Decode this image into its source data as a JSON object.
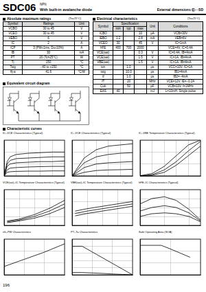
{
  "header": {
    "part_number": "SDC06",
    "polarity": "NPN",
    "description": "With built-in avalanche diode",
    "external_dimensions": "External dimensions Ⓔ···SD"
  },
  "absolute_maximum_ratings": {
    "title": "Absolute maximum ratings",
    "condition": "(Ta=25°C)",
    "columns": [
      "Symbol",
      "Ratings",
      "Unit"
    ],
    "rows": [
      [
        "VCBO",
        "30 to 45",
        "V"
      ],
      [
        "VCEO",
        "30 to 45",
        "V"
      ],
      [
        "VEBO",
        "6",
        "V"
      ],
      [
        "IC",
        "2",
        "A"
      ],
      [
        "ICP",
        "3 (PW≤1ms, Du≤10%)",
        "A"
      ],
      [
        "IB",
        "30",
        "mA"
      ],
      [
        "PT",
        "20 (Tc=25°C)",
        "W"
      ],
      [
        "Tj",
        "150",
        "°C"
      ],
      [
        "Tstg",
        "−40 to +150",
        "°C"
      ],
      [
        "θj-a",
        "41.6",
        "°C/W"
      ]
    ]
  },
  "electrical_characteristics": {
    "title": "Electrical characteristics",
    "condition": "(Ta=25°C)",
    "columns": [
      "Symbol",
      "Specification",
      "Unit",
      "Conditions"
    ],
    "subcolumns": [
      "min",
      "typ",
      "max"
    ],
    "rows": [
      [
        "ICBO",
        null,
        null,
        "10",
        "μA",
        "VCB=30V"
      ],
      [
        "IEBO",
        "1.2",
        null,
        "2.8",
        "mA",
        "VEB=6V"
      ],
      [
        "VCEO",
        "30",
        null,
        "45",
        "V",
        "IC=1mA"
      ],
      [
        "hFE",
        "400",
        "700",
        "2000",
        null,
        "VCE=4V, IC=0.4A"
      ],
      [
        "VCE(sat)",
        null,
        null,
        "0.3",
        "V",
        "IC=0.4A, IB=4mA"
      ],
      [
        "VCE(sat)",
        null,
        null,
        "1.5",
        "V",
        "IC=1A, IB=4mA"
      ],
      [
        "VBE(sat)",
        null,
        null,
        "1.5",
        "V",
        "IC=1A, IB=4mA"
      ],
      [
        "ton",
        null,
        "1.0",
        null,
        "μs",
        "VCC=10V, IC=1A"
      ],
      [
        "tstg",
        null,
        "10.0",
        null,
        "μs",
        "IB1=4mA"
      ],
      [
        "tf",
        null,
        "1.0",
        null,
        "μs",
        "IB2=−4mA"
      ],
      [
        "fT",
        null,
        "20",
        null,
        "MHz",
        "VCE=12V, IE=−0.2A"
      ],
      [
        "Cob",
        null,
        "50",
        null,
        "pF",
        "VCB=10V, f=1MHz"
      ],
      [
        "EAS",
        "40",
        null,
        null,
        "mJ",
        "L=10mH, Single pulse"
      ]
    ]
  },
  "equivalent_circuit": {
    "title": "Equivalent circuit diagram"
  },
  "characteristic_curves": {
    "title": "Characteristic curves"
  },
  "chart_data": [
    {
      "type": "line",
      "title": "IC–VCE Characteristics (Typical)",
      "color": "#000000",
      "grid": true,
      "tick_labels": false,
      "x": [
        0,
        0.5,
        1,
        2,
        4,
        6,
        8,
        10
      ],
      "xlim": [
        0,
        10
      ],
      "xticks": [
        0,
        2,
        4,
        6,
        8,
        10
      ],
      "ylim": [
        0,
        3
      ],
      "yticks": [
        0,
        1,
        2,
        3
      ],
      "series": [
        {
          "values": [
            0,
            1.2,
            1.6,
            1.8,
            1.9,
            1.95,
            2.0,
            2.0
          ]
        },
        {
          "values": [
            0,
            1.0,
            1.3,
            1.45,
            1.5,
            1.55,
            1.6,
            1.6
          ]
        },
        {
          "values": [
            0,
            0.8,
            1.0,
            1.1,
            1.15,
            1.2,
            1.2,
            1.25
          ]
        },
        {
          "values": [
            0,
            0.5,
            0.65,
            0.7,
            0.75,
            0.78,
            0.8,
            0.8
          ]
        },
        {
          "values": [
            0,
            0.3,
            0.35,
            0.38,
            0.4,
            0.4,
            0.42,
            0.42
          ]
        }
      ]
    },
    {
      "type": "line",
      "title": "IC–VCE Characteristics (Typical)",
      "color": "#000000",
      "grid": true,
      "tick_labels": false,
      "x": [
        0,
        0.2,
        0.4,
        0.6,
        0.8,
        1.0
      ],
      "xlim": [
        0,
        1
      ],
      "xticks": [
        0,
        0.2,
        0.4,
        0.6,
        0.8,
        1
      ],
      "ylim": [
        0,
        3
      ],
      "yticks": [
        0,
        1,
        2,
        3
      ],
      "series": [
        {
          "values": [
            0,
            1.5,
            2.2,
            2.5,
            2.6,
            2.7
          ]
        },
        {
          "values": [
            0,
            1.1,
            1.6,
            1.8,
            1.9,
            1.95
          ]
        },
        {
          "values": [
            0,
            0.7,
            1.0,
            1.1,
            1.15,
            1.2
          ]
        },
        {
          "values": [
            0,
            0.3,
            0.45,
            0.5,
            0.52,
            0.55
          ]
        }
      ]
    },
    {
      "type": "line",
      "title": "IC–VBE Temperature Characteristics (Typical)",
      "color": "#000000",
      "grid": true,
      "tick_labels": false,
      "x": [
        0.8,
        1.0,
        1.2,
        1.4,
        1.6,
        1.8
      ],
      "xlim": [
        0.8,
        1.8
      ],
      "xticks": [
        0.8,
        1,
        1.2,
        1.4,
        1.6,
        1.8
      ],
      "ylim": [
        0,
        3
      ],
      "yticks": [
        0,
        1,
        2,
        3
      ],
      "series": [
        {
          "values": [
            0.02,
            0.2,
            0.8,
            1.7,
            2.6,
            3.0
          ]
        },
        {
          "values": [
            0,
            0.1,
            0.5,
            1.2,
            2.1,
            2.9
          ]
        },
        {
          "values": [
            0,
            0.05,
            0.3,
            0.9,
            1.7,
            2.5
          ]
        }
      ]
    },
    {
      "type": "line",
      "title": "VCE(sat)–IC Temperature Characteristics (Typical)",
      "color": "#000000",
      "grid": true,
      "tick_labels": false,
      "x": [
        0.1,
        0.5,
        1,
        1.5,
        2
      ],
      "xlim": [
        0,
        2
      ],
      "xticks": [
        0,
        0.5,
        1,
        1.5,
        2
      ],
      "ylim": [
        0,
        2
      ],
      "yticks": [
        0,
        0.5,
        1,
        1.5,
        2
      ],
      "series": [
        {
          "values": [
            0.2,
            0.3,
            0.5,
            0.8,
            1.2
          ]
        },
        {
          "values": [
            0.25,
            0.35,
            0.6,
            0.95,
            1.4
          ]
        },
        {
          "values": [
            0.15,
            0.25,
            0.4,
            0.65,
            1.0
          ]
        }
      ]
    },
    {
      "type": "line",
      "title": "VBE(sat)–IC Temperature Characteristics (Typical)",
      "color": "#000000",
      "grid": true,
      "tick_labels": false,
      "x": [
        0.1,
        0.5,
        1,
        1.5,
        2
      ],
      "xlim": [
        0,
        2
      ],
      "xticks": [
        0,
        0.5,
        1,
        1.5,
        2
      ],
      "ylim": [
        0,
        3
      ],
      "yticks": [
        0,
        1,
        2,
        3
      ],
      "series": [
        {
          "values": [
            1.0,
            1.2,
            1.4,
            1.6,
            1.8
          ]
        },
        {
          "values": [
            0.8,
            1.0,
            1.2,
            1.4,
            1.6
          ]
        },
        {
          "values": [
            1.2,
            1.4,
            1.6,
            1.8,
            2.0
          ]
        }
      ]
    },
    {
      "type": "line",
      "title": "hFE–IC Characteristics (Typical)",
      "color": "#000000",
      "grid": true,
      "tick_labels": false,
      "log": "x",
      "x": [
        0.01,
        0.03,
        0.1,
        0.3,
        1,
        3
      ],
      "xlim": [
        0.01,
        3
      ],
      "xticks": [
        0.01,
        0.1,
        1
      ],
      "ylim": [
        0,
        2000
      ],
      "yticks": [
        0,
        500,
        1000,
        1500,
        2000
      ],
      "series": [
        {
          "values": [
            1200,
            1500,
            1600,
            1400,
            900,
            300
          ]
        },
        {
          "values": [
            800,
            1000,
            1100,
            1000,
            700,
            250
          ]
        },
        {
          "values": [
            500,
            650,
            700,
            650,
            500,
            200
          ]
        }
      ]
    },
    {
      "type": "line",
      "title": "rth–PW Characteristics",
      "color": "#000000",
      "grid": true,
      "tick_labels": false,
      "log": true,
      "x": [
        1,
        10,
        100,
        1000
      ],
      "xlim": [
        1,
        1000
      ],
      "xticks": [
        1,
        10,
        100,
        1000
      ],
      "ylim": [
        0.1,
        100
      ],
      "yticks": [
        0.1,
        1,
        10,
        100
      ],
      "series": [
        {
          "values": [
            0.5,
            2,
            8,
            40
          ]
        }
      ]
    },
    {
      "type": "line",
      "title": "PT–Ta Characteristics",
      "color": "#000000",
      "grid": true,
      "tick_labels": false,
      "x": [
        0,
        25,
        50,
        75,
        100,
        125,
        150
      ],
      "xlim": [
        0,
        150
      ],
      "xticks": [
        0,
        50,
        100,
        150
      ],
      "ylim": [
        0,
        25
      ],
      "yticks": [
        0,
        5,
        10,
        15,
        20,
        25
      ],
      "series": [
        {
          "values": [
            20,
            20,
            16,
            12,
            8,
            4,
            0
          ]
        },
        {
          "values": [
            1.6,
            1.6,
            1.3,
            1.0,
            0.6,
            0.3,
            0
          ]
        }
      ]
    },
    {
      "type": "line",
      "title": "Safe Operating Area (SOA)",
      "color": "#000000",
      "grid": true,
      "tick_labels": false,
      "log": true,
      "x": [
        1,
        5,
        10,
        45
      ],
      "xlim": [
        1,
        100
      ],
      "xticks": [
        1,
        10,
        100
      ],
      "ylim": [
        0.01,
        10
      ],
      "yticks": [
        0.01,
        0.1,
        1,
        10
      ],
      "series": [
        {
          "values": [
            3,
            3,
            1.5,
            0.3
          ]
        }
      ]
    }
  ],
  "page_number": "196"
}
